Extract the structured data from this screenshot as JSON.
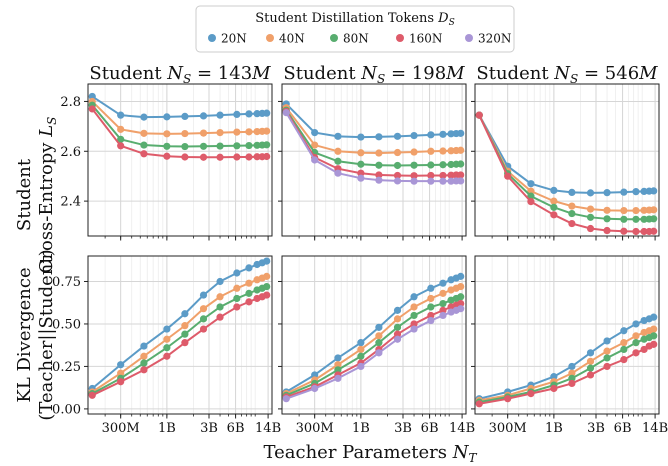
{
  "legend": {
    "title": "Student Distillation Tokens D_S",
    "entries": [
      {
        "label": "20N",
        "color": "#5b9bc7"
      },
      {
        "label": "40N",
        "color": "#f0a06a"
      },
      {
        "label": "80N",
        "color": "#58ad6f"
      },
      {
        "label": "160N",
        "color": "#de5b6a"
      },
      {
        "label": "320N",
        "color": "#a996d6"
      }
    ]
  },
  "x_axis_label": "Teacher Parameters N_T",
  "row_labels": {
    "top": [
      "Student",
      "Cross-Entropy L_S"
    ],
    "bottom": [
      "KL Divergence",
      "(Teacher||Student)"
    ]
  },
  "chart_data": {
    "type": "line",
    "xscale": "log",
    "x": [
      0.143,
      0.3,
      0.55,
      1.0,
      1.6,
      2.6,
      4.0,
      6.2,
      8.5,
      10.5,
      12.0,
      13.5
    ],
    "xlim": [
      0.128,
      15.5
    ],
    "xticks": [
      0.3,
      1.0,
      3.0,
      6.0,
      14.0
    ],
    "xtick_labels": [
      "300M",
      "1B",
      "3B",
      "6B",
      "14B"
    ],
    "series_names": [
      "20N",
      "40N",
      "80N",
      "160N",
      "320N"
    ],
    "series_colors": [
      "#5b9bc7",
      "#f0a06a",
      "#58ad6f",
      "#de5b6a",
      "#a996d6"
    ],
    "rows": [
      {
        "name": "cross-entropy",
        "ylim": [
          2.26,
          2.87
        ],
        "yticks": [
          2.4,
          2.6,
          2.8
        ],
        "ytick_labels": [
          "2.4",
          "2.6",
          "2.8"
        ],
        "panels": [
          {
            "title": "Student N_S = 143M",
            "series": [
              {
                "name": "20N",
                "values": [
                  2.82,
                  2.745,
                  2.737,
                  2.738,
                  2.74,
                  2.742,
                  2.745,
                  2.748,
                  2.75,
                  2.751,
                  2.752,
                  2.753
                ]
              },
              {
                "name": "40N",
                "values": [
                  2.8,
                  2.688,
                  2.672,
                  2.67,
                  2.671,
                  2.673,
                  2.675,
                  2.677,
                  2.678,
                  2.679,
                  2.68,
                  2.681
                ]
              },
              {
                "name": "80N",
                "values": [
                  2.785,
                  2.648,
                  2.625,
                  2.62,
                  2.619,
                  2.62,
                  2.621,
                  2.622,
                  2.623,
                  2.624,
                  2.625,
                  2.626
                ]
              },
              {
                "name": "160N",
                "values": [
                  2.77,
                  2.622,
                  2.59,
                  2.58,
                  2.577,
                  2.576,
                  2.576,
                  2.577,
                  2.577,
                  2.578,
                  2.578,
                  2.579
                ]
              }
            ]
          },
          {
            "title": "Student N_S = 198M",
            "series": [
              {
                "name": "20N",
                "values": [
                  2.79,
                  2.675,
                  2.66,
                  2.657,
                  2.658,
                  2.66,
                  2.663,
                  2.666,
                  2.668,
                  2.67,
                  2.671,
                  2.672
                ]
              },
              {
                "name": "40N",
                "values": [
                  2.775,
                  2.625,
                  2.6,
                  2.594,
                  2.593,
                  2.595,
                  2.597,
                  2.6,
                  2.601,
                  2.602,
                  2.603,
                  2.604
                ]
              },
              {
                "name": "80N",
                "values": [
                  2.765,
                  2.595,
                  2.56,
                  2.548,
                  2.544,
                  2.543,
                  2.544,
                  2.545,
                  2.546,
                  2.547,
                  2.548,
                  2.549
                ]
              },
              {
                "name": "160N",
                "values": [
                  2.76,
                  2.575,
                  2.53,
                  2.512,
                  2.505,
                  2.503,
                  2.502,
                  2.503,
                  2.503,
                  2.504,
                  2.505,
                  2.505
                ]
              },
              {
                "name": "320N",
                "values": [
                  2.755,
                  2.565,
                  2.512,
                  2.492,
                  2.484,
                  2.481,
                  2.48,
                  2.48,
                  2.48,
                  2.48,
                  2.481,
                  2.481
                ]
              }
            ]
          },
          {
            "title": "Student N_S = 546M",
            "series": [
              {
                "name": "20N",
                "values": [
                  2.745,
                  2.54,
                  2.47,
                  2.443,
                  2.435,
                  2.433,
                  2.434,
                  2.436,
                  2.438,
                  2.439,
                  2.44,
                  2.441
                ]
              },
              {
                "name": "40N",
                "values": [
                  2.745,
                  2.52,
                  2.44,
                  2.4,
                  2.38,
                  2.368,
                  2.363,
                  2.362,
                  2.362,
                  2.363,
                  2.364,
                  2.365
                ]
              },
              {
                "name": "80N",
                "values": [
                  2.745,
                  2.51,
                  2.42,
                  2.375,
                  2.35,
                  2.335,
                  2.329,
                  2.327,
                  2.327,
                  2.327,
                  2.328,
                  2.329
                ]
              },
              {
                "name": "160N",
                "values": [
                  2.745,
                  2.5,
                  2.398,
                  2.345,
                  2.31,
                  2.29,
                  2.282,
                  2.279,
                  2.278,
                  2.278,
                  2.278,
                  2.279
                ]
              }
            ]
          }
        ]
      },
      {
        "name": "kl-divergence",
        "ylim": [
          -0.03,
          0.9
        ],
        "yticks": [
          0.0,
          0.25,
          0.5,
          0.75
        ],
        "ytick_labels": [
          "0.00",
          "0.25",
          "0.50",
          "0.75"
        ],
        "panels": [
          {
            "title": "",
            "series": [
              {
                "name": "20N",
                "values": [
                  0.12,
                  0.26,
                  0.37,
                  0.47,
                  0.56,
                  0.67,
                  0.75,
                  0.8,
                  0.83,
                  0.85,
                  0.86,
                  0.87
                ]
              },
              {
                "name": "40N",
                "values": [
                  0.1,
                  0.21,
                  0.31,
                  0.41,
                  0.49,
                  0.59,
                  0.66,
                  0.71,
                  0.74,
                  0.76,
                  0.77,
                  0.78
                ]
              },
              {
                "name": "80N",
                "values": [
                  0.09,
                  0.18,
                  0.27,
                  0.36,
                  0.44,
                  0.53,
                  0.6,
                  0.65,
                  0.68,
                  0.7,
                  0.71,
                  0.72
                ]
              },
              {
                "name": "160N",
                "values": [
                  0.08,
                  0.16,
                  0.23,
                  0.31,
                  0.39,
                  0.47,
                  0.54,
                  0.6,
                  0.63,
                  0.65,
                  0.66,
                  0.67
                ]
              }
            ]
          },
          {
            "title": "",
            "series": [
              {
                "name": "20N",
                "values": [
                  0.1,
                  0.2,
                  0.3,
                  0.39,
                  0.48,
                  0.58,
                  0.66,
                  0.71,
                  0.74,
                  0.76,
                  0.77,
                  0.78
                ]
              },
              {
                "name": "40N",
                "values": [
                  0.09,
                  0.17,
                  0.26,
                  0.35,
                  0.43,
                  0.53,
                  0.6,
                  0.65,
                  0.68,
                  0.7,
                  0.71,
                  0.72
                ]
              },
              {
                "name": "80N",
                "values": [
                  0.08,
                  0.15,
                  0.23,
                  0.31,
                  0.39,
                  0.48,
                  0.55,
                  0.6,
                  0.62,
                  0.64,
                  0.65,
                  0.66
                ]
              },
              {
                "name": "160N",
                "values": [
                  0.07,
                  0.13,
                  0.2,
                  0.27,
                  0.35,
                  0.44,
                  0.5,
                  0.55,
                  0.58,
                  0.6,
                  0.61,
                  0.62
                ]
              },
              {
                "name": "320N",
                "values": [
                  0.06,
                  0.12,
                  0.18,
                  0.25,
                  0.33,
                  0.41,
                  0.47,
                  0.52,
                  0.55,
                  0.57,
                  0.58,
                  0.59
                ]
              }
            ]
          },
          {
            "title": "",
            "series": [
              {
                "name": "20N",
                "values": [
                  0.06,
                  0.1,
                  0.14,
                  0.19,
                  0.25,
                  0.33,
                  0.4,
                  0.46,
                  0.5,
                  0.52,
                  0.53,
                  0.54
                ]
              },
              {
                "name": "40N",
                "values": [
                  0.05,
                  0.08,
                  0.12,
                  0.16,
                  0.21,
                  0.28,
                  0.34,
                  0.39,
                  0.43,
                  0.45,
                  0.46,
                  0.47
                ]
              },
              {
                "name": "80N",
                "values": [
                  0.04,
                  0.07,
                  0.1,
                  0.14,
                  0.18,
                  0.24,
                  0.3,
                  0.35,
                  0.39,
                  0.41,
                  0.42,
                  0.43
                ]
              },
              {
                "name": "160N",
                "values": [
                  0.03,
                  0.06,
                  0.09,
                  0.12,
                  0.15,
                  0.2,
                  0.25,
                  0.29,
                  0.33,
                  0.35,
                  0.37,
                  0.38
                ]
              }
            ]
          }
        ]
      }
    ]
  }
}
